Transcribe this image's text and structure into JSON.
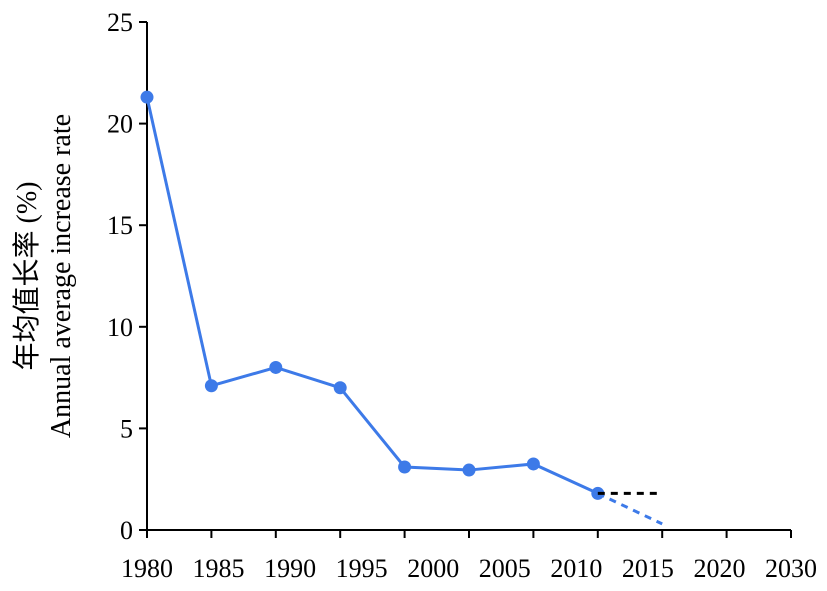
{
  "chart_data": {
    "type": "line",
    "title": "",
    "xlabel": "",
    "ylabel_lines": [
      "年均值长率 (%)",
      "Annual average increase rate"
    ],
    "xlim": [
      1980,
      2030
    ],
    "ylim": [
      0,
      25
    ],
    "x_ticks": [
      "1980",
      "1985",
      "1990",
      "1995",
      "2000",
      "2005",
      "2010",
      "2015",
      "2020",
      "2030"
    ],
    "y_ticks": [
      "0",
      "5",
      "10",
      "15",
      "20",
      "25"
    ],
    "grid": false,
    "legend": "none",
    "series": [
      {
        "style": "solid-with-markers",
        "color": "#3d7ae8",
        "points": [
          {
            "x": 1980,
            "y": 21.3
          },
          {
            "x": 1985,
            "y": 7.1
          },
          {
            "x": 1990,
            "y": 8.0
          },
          {
            "x": 1995,
            "y": 7.0
          },
          {
            "x": 2000,
            "y": 3.1
          },
          {
            "x": 2005,
            "y": 2.95
          },
          {
            "x": 2010,
            "y": 3.25
          },
          {
            "x": 2015,
            "y": 1.8
          }
        ]
      },
      {
        "style": "dashed",
        "color": "#3d7ae8",
        "points": [
          {
            "x": 2015,
            "y": 1.8
          },
          {
            "x": 2020,
            "y": 0.3
          }
        ]
      },
      {
        "style": "dashed",
        "color": "#000000",
        "points": [
          {
            "x": 2015,
            "y": 1.8
          },
          {
            "x": 2020,
            "y": 1.8
          }
        ]
      }
    ]
  }
}
